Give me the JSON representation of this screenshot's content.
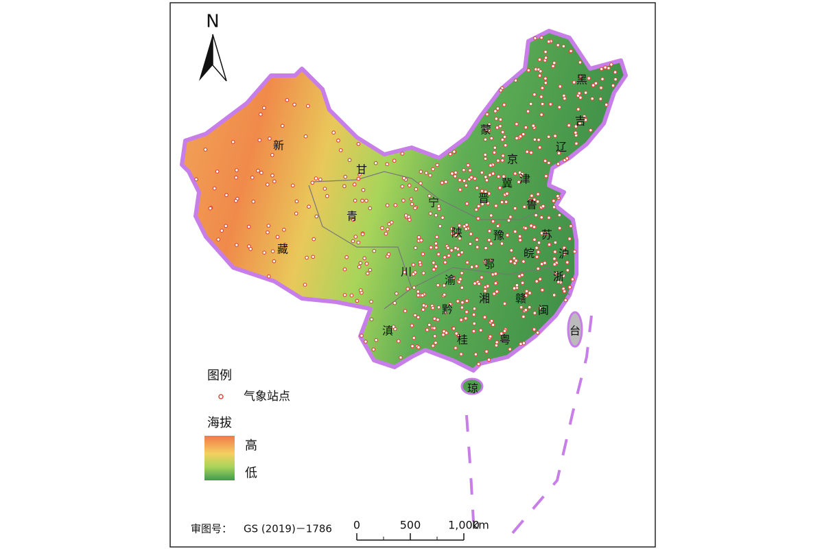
{
  "north": "N",
  "provinces": [
    "新",
    "甘",
    "蒙",
    "黑",
    "吉",
    "辽",
    "京",
    "津",
    "冀",
    "晋",
    "宁",
    "青",
    "鲁",
    "陕",
    "豫",
    "苏",
    "藏",
    "皖",
    "沪",
    "鄂",
    "川",
    "渝",
    "浙",
    "湘",
    "赣",
    "黔",
    "闽",
    "台",
    "滇",
    "桂",
    "粤",
    "琼"
  ],
  "legend": {
    "title": "图例",
    "station": "气象站点",
    "elevation_title": "海拔",
    "high": "高",
    "low": "低"
  },
  "map_approval": {
    "label": "审图号：",
    "number": "GS (2019)－1786"
  },
  "scale": {
    "ticks": [
      0,
      500,
      {
        "value": 1000,
        "label": "1,000"
      }
    ],
    "unit": "km"
  }
}
